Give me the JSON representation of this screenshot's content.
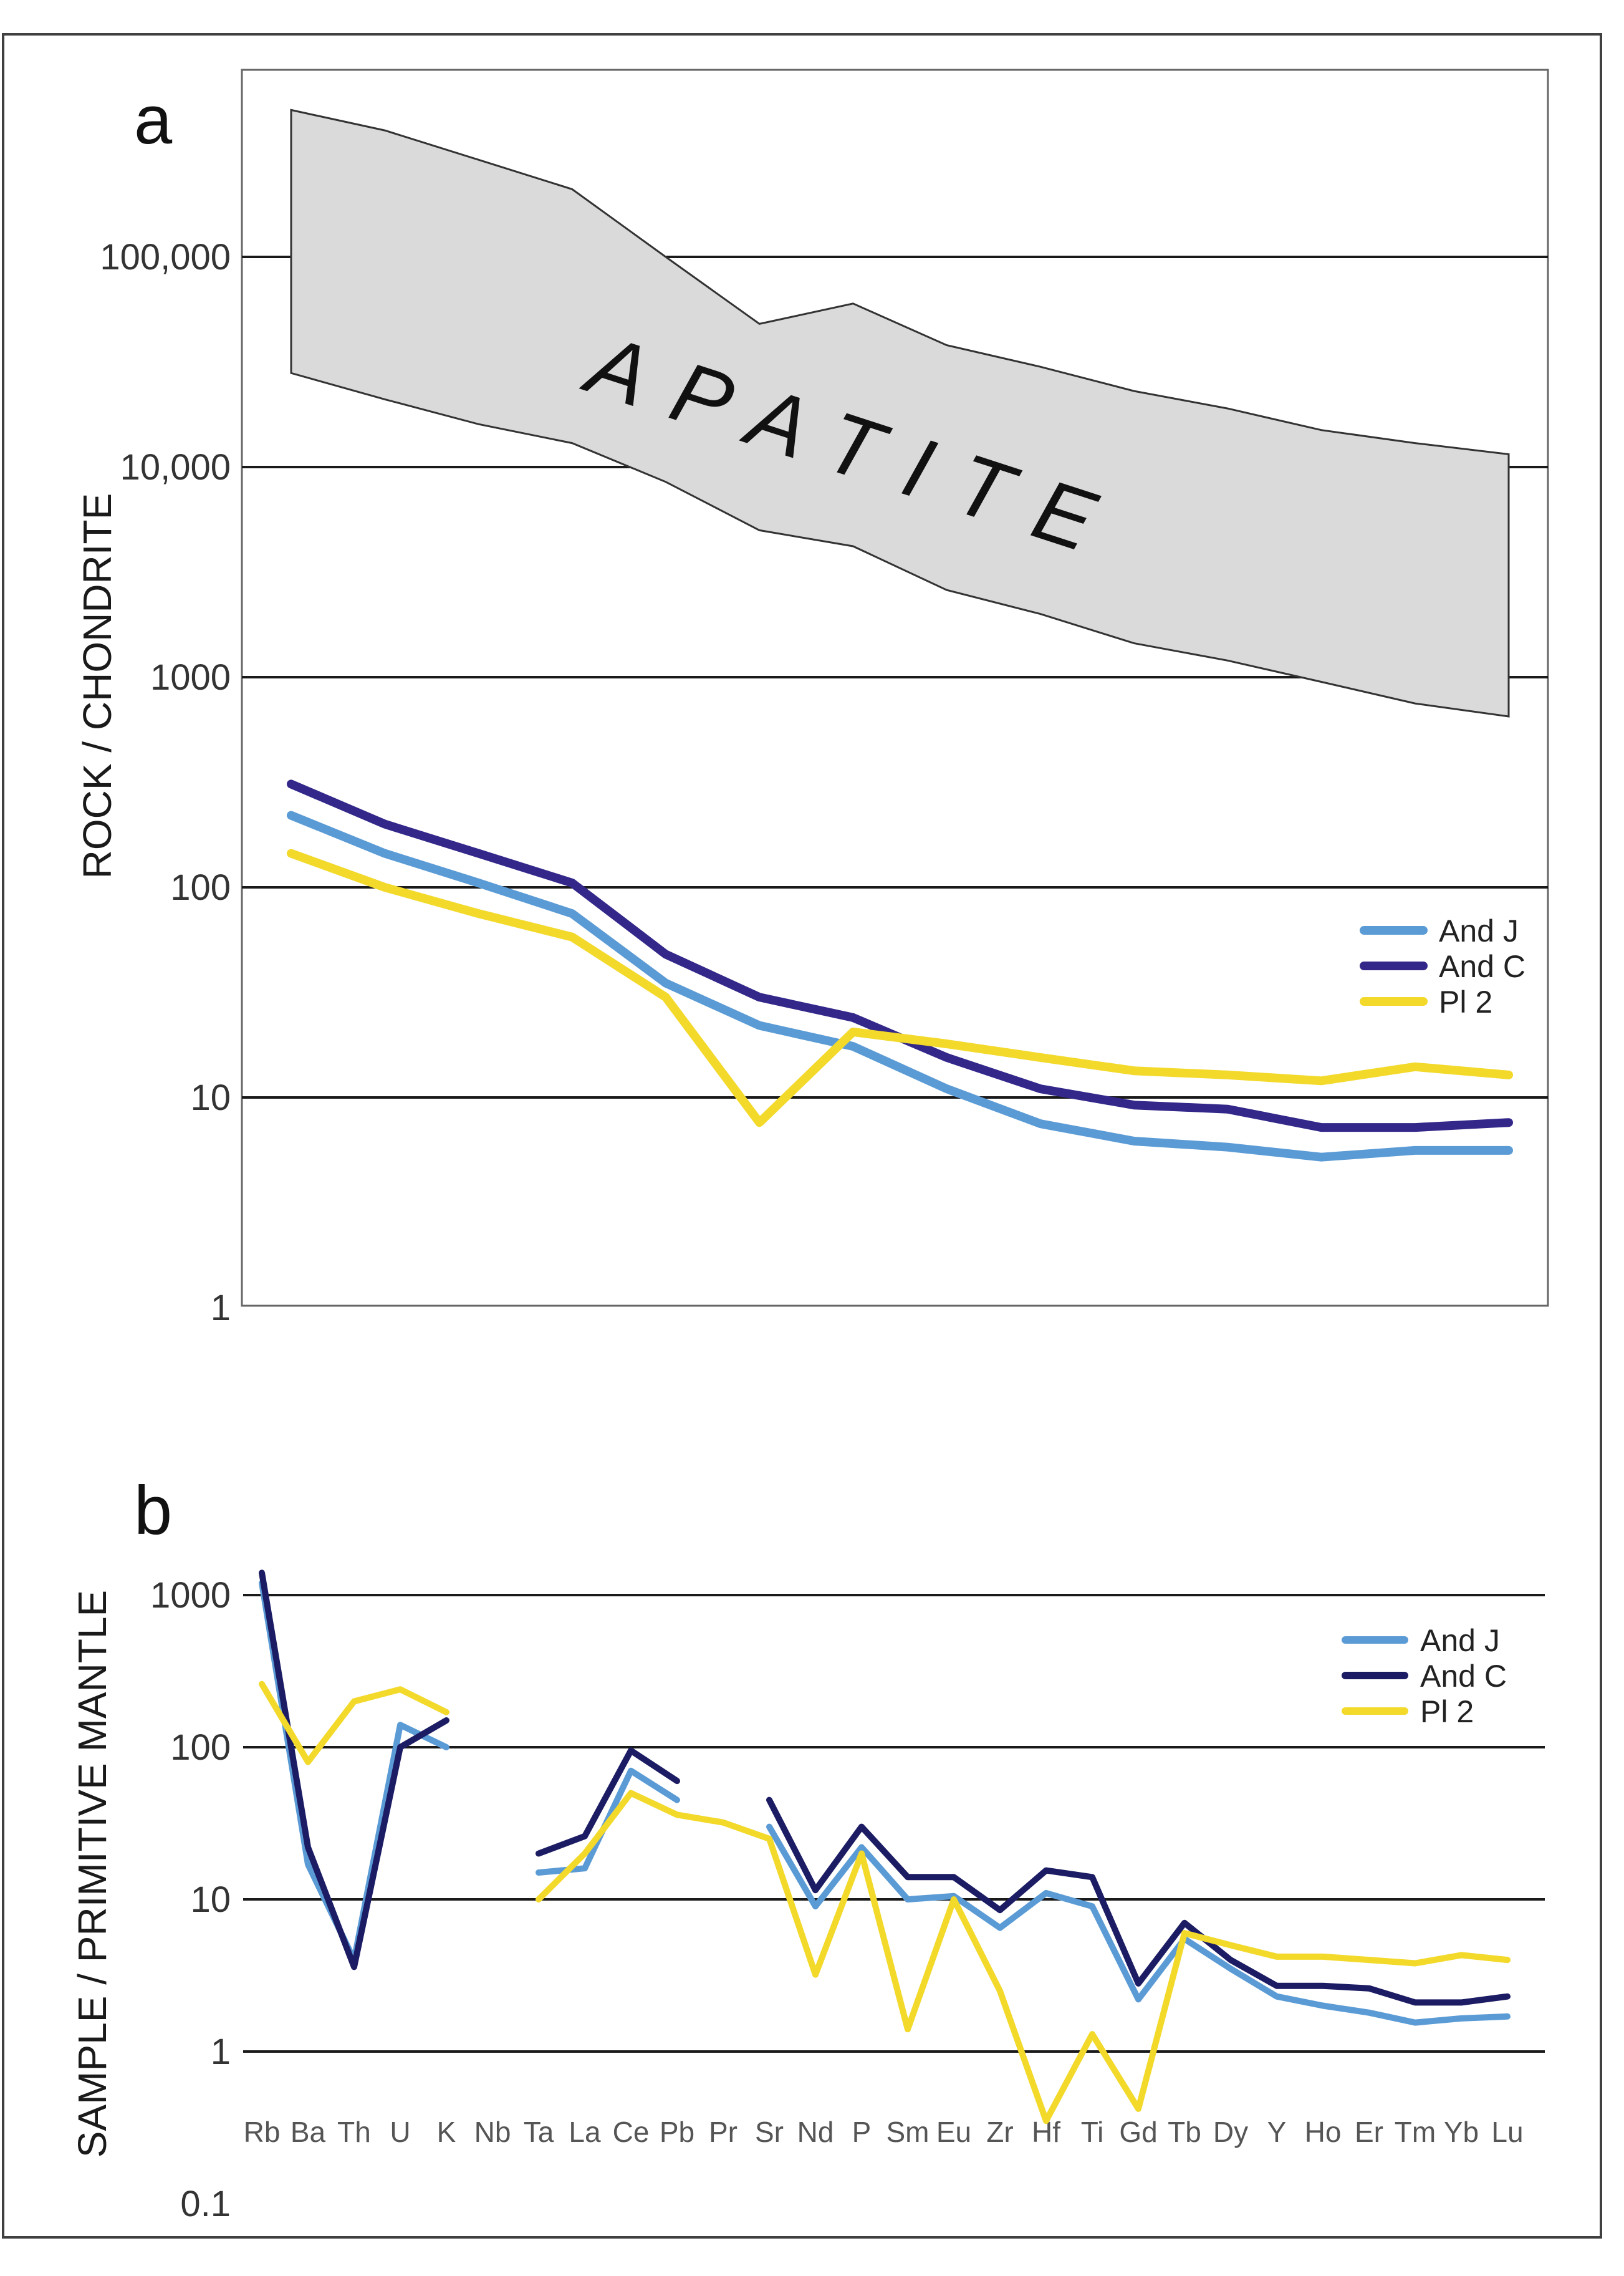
{
  "chart_data": [
    {
      "type": "line",
      "panel_label": "a",
      "ylabel": "ROCK / CHONDRITE",
      "yscale": "log",
      "ylim": [
        1,
        600000
      ],
      "yticks": [
        1,
        10,
        100,
        1000,
        10000,
        100000
      ],
      "ytick_labels": [
        "1",
        "10",
        "100",
        "1000",
        "10,000",
        "100,000"
      ],
      "grid": true,
      "legend_position": "right",
      "band": {
        "label": "APATITE",
        "color": "#dadada",
        "upper": [
          500000,
          400000,
          290000,
          210000,
          100000,
          48000,
          60000,
          38000,
          30000,
          23000,
          19000,
          15000,
          13000,
          11500
        ],
        "lower": [
          28000,
          21000,
          16000,
          13000,
          8500,
          5000,
          4200,
          2600,
          2000,
          1450,
          1200,
          950,
          750,
          650
        ]
      },
      "x": [
        1,
        2,
        3,
        4,
        5,
        6,
        7,
        8,
        9,
        10,
        11,
        12,
        13,
        14
      ],
      "series": [
        {
          "name": "And J",
          "color": "#5b9bd5",
          "values": [
            220,
            145,
            105,
            75,
            35,
            22,
            17.5,
            11,
            7.5,
            6.2,
            5.8,
            5.2,
            5.6,
            5.6
          ]
        },
        {
          "name": "And C",
          "color": "#33288a",
          "values": [
            310,
            200,
            145,
            105,
            48,
            30,
            24,
            15.5,
            11,
            9.2,
            8.8,
            7.2,
            7.2,
            7.6
          ]
        },
        {
          "name": "Pl 2",
          "color": "#f2d92a",
          "values": [
            145,
            100,
            75,
            58,
            30,
            7.6,
            20.5,
            18,
            15.5,
            13.4,
            12.8,
            12,
            14,
            12.8
          ]
        }
      ]
    },
    {
      "type": "line",
      "panel_label": "b",
      "ylabel": "SAMPLE / PRIMITIVE  MANTLE",
      "yscale": "log",
      "ylim": [
        0.1,
        1500
      ],
      "yticks": [
        0.1,
        1,
        10,
        100,
        1000
      ],
      "ytick_labels": [
        "0.1",
        "1",
        "10",
        "100",
        "1000"
      ],
      "grid": true,
      "legend_position": "top-right",
      "categories": [
        "Rb",
        "Ba",
        "Th",
        "U",
        "K",
        "Nb",
        "Ta",
        "La",
        "Ce",
        "Pb",
        "Pr",
        "Sr",
        "Nd",
        "P",
        "Sm",
        "Eu",
        "Zr",
        "Hf",
        "Ti",
        "Gd",
        "Tb",
        "Dy",
        "Y",
        "Ho",
        "Er",
        "Tm",
        "Yb",
        "Lu"
      ],
      "series": [
        {
          "name": "And J",
          "color": "#5b9bd5",
          "values": [
            1200,
            17,
            4,
            140,
            100,
            null,
            15,
            16,
            70,
            45,
            null,
            30,
            9,
            22,
            10,
            10.5,
            6.5,
            11,
            9,
            2.2,
            5.5,
            3.5,
            2.3,
            2,
            1.8,
            1.55,
            1.65,
            1.7
          ]
        },
        {
          "name": "And C",
          "color": "#1c1c64",
          "values": [
            1400,
            22,
            3.6,
            100,
            150,
            null,
            20,
            26,
            95,
            60,
            null,
            45,
            11.5,
            30,
            14,
            14,
            8.5,
            15.5,
            14,
            2.8,
            7,
            4,
            2.7,
            2.7,
            2.6,
            2.1,
            2.1,
            2.3
          ]
        },
        {
          "name": "Pl 2",
          "color": "#f2d92a",
          "values": [
            260,
            80,
            200,
            240,
            170,
            null,
            10,
            20,
            50,
            36,
            32,
            25,
            3.2,
            20,
            1.4,
            10,
            2.5,
            0.35,
            1.3,
            0.42,
            6,
            5,
            4.2,
            4.2,
            4,
            3.8,
            4.3,
            4
          ]
        }
      ]
    }
  ]
}
